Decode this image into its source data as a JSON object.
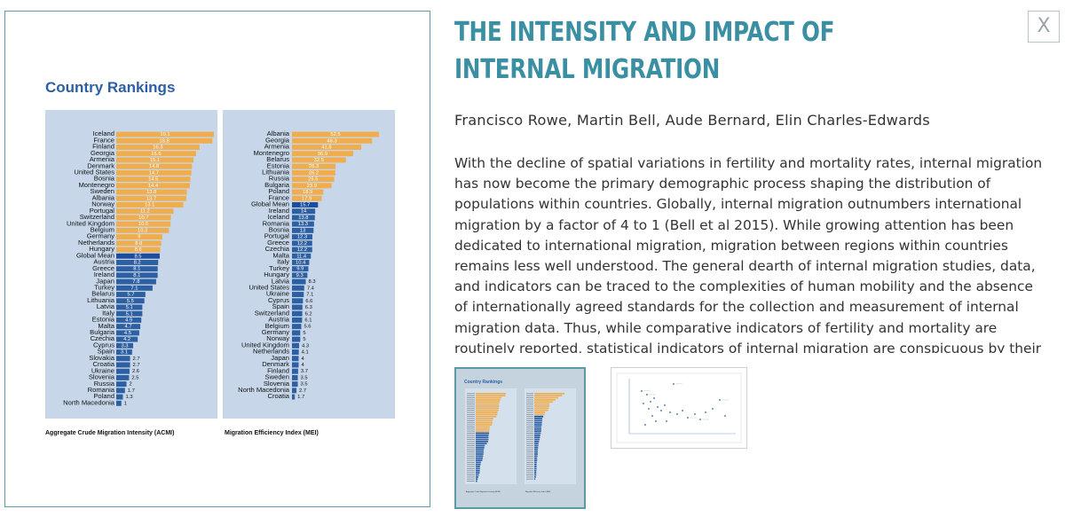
{
  "figure": {
    "title": "Country Rankings",
    "chart_data": [
      {
        "type": "bar",
        "orientation": "horizontal",
        "title": "Aggregate Crude Migration Intensity (ACMI)",
        "highlight": "Global Mean",
        "categories": [
          "Iceland",
          "France",
          "Finland",
          "Georgia",
          "Armenia",
          "Denmark",
          "United States",
          "Bosnia",
          "Montenegro",
          "Sweden",
          "Albania",
          "Norway",
          "Portugal",
          "Switzerland",
          "United Kingdom",
          "Belgium",
          "Germany",
          "Netherlands",
          "Hungary",
          "Global Mean",
          "Austria",
          "Greece",
          "Ireland",
          "Japan",
          "Turkey",
          "Belarus",
          "Lithuania",
          "Latvia",
          "Italy",
          "Estonia",
          "Malta",
          "Bulgaria",
          "Czechia",
          "Cyprus",
          "Spain",
          "Slovakia",
          "Croatia",
          "Ukraine",
          "Slovenia",
          "Russia",
          "Romania",
          "Poland",
          "North Macedonia"
        ],
        "values": [
          19.1,
          18.8,
          16.3,
          15.6,
          15.1,
          14.8,
          14.7,
          14.5,
          14.4,
          13.8,
          13.7,
          13.1,
          11.2,
          10.7,
          10.6,
          10.3,
          9,
          8.8,
          8.6,
          8.5,
          8.2,
          8.1,
          8.1,
          7.8,
          7.1,
          5.7,
          5.5,
          5.1,
          5.1,
          4.9,
          4.7,
          4.5,
          4.2,
          3.3,
          3.1,
          2.7,
          2.7,
          2.6,
          2.5,
          2,
          1.7,
          1.3,
          1
        ]
      },
      {
        "type": "bar",
        "orientation": "horizontal",
        "title": "Migration Efficiency Index (MEI)",
        "highlight": "Global Mean",
        "categories": [
          "Albania",
          "Georgia",
          "Armenia",
          "Montenegro",
          "Belarus",
          "Estonia",
          "Lithuania",
          "Russia",
          "Bulgaria",
          "Poland",
          "France",
          "Global Mean",
          "Ireland",
          "Iceland",
          "Romania",
          "Bosnia",
          "Portugal",
          "Greece",
          "Czechia",
          "Malta",
          "Italy",
          "Turkey",
          "Hungary",
          "Latvia",
          "United States",
          "Ukraine",
          "Cyprus",
          "Spain",
          "Switzerland",
          "Austria",
          "Belgium",
          "Germany",
          "Norway",
          "United Kingdom",
          "Netherlands",
          "Japan",
          "Denmark",
          "Finland",
          "Sweden",
          "Slovenia",
          "North Macedonia",
          "Croatia"
        ],
        "values": [
          52.5,
          48.3,
          41.8,
          36.9,
          32.5,
          26.3,
          26.2,
          25.5,
          23.9,
          18.9,
          17.9,
          15.7,
          14,
          13.8,
          13.3,
          13,
          12.3,
          12.2,
          12.2,
          11.4,
          10.4,
          9.9,
          9.3,
          8.3,
          7.4,
          7.1,
          6.6,
          6.3,
          6.2,
          6.1,
          5.6,
          5,
          5,
          4.3,
          4.1,
          4,
          4,
          3.7,
          3.5,
          3.5,
          2.7,
          1.7
        ]
      }
    ]
  },
  "colors": {
    "accent": "#3a8fa3",
    "bar_top": "#f0ad4e",
    "bar_bottom": "#2d5fa3",
    "bar_mean": "#1e4c9a",
    "panel_bg": "#c7d7e9"
  },
  "close": {
    "label": "X"
  },
  "article": {
    "title": "THE INTENSITY AND IMPACT OF INTERNAL MIGRATION",
    "authors": "Francisco Rowe, Martin Bell, Aude Bernard, Elin Charles-Edwards",
    "abstract": "With the decline of spatial variations in fertility and mortality rates, internal migration has now become the primary demographic process shaping the distribution of populations within countries. Globally, internal migration outnumbers international migration by a factor of 4 to 1 (Bell et al 2015). While growing attention has been dedicated to international migration, migration between regions within countries remains less well understood. The general dearth of internal migration studies, data, and indicators can be traced to the complexities of human mobility and the absence of internationally agreed standards for the collection and measurement of internal migration data. Thus, while comparative indicators of fertility and mortality are routinely reported, statistical indicators of internal migration are conspicuous by their absence."
  },
  "thumbnails": [
    {
      "title": "Country Rankings",
      "captions": [
        "Aggregate Crude Migration Intensity (ACMI)",
        "Migration Efficiency Index (MEI)"
      ]
    },
    {
      "title": ""
    }
  ]
}
